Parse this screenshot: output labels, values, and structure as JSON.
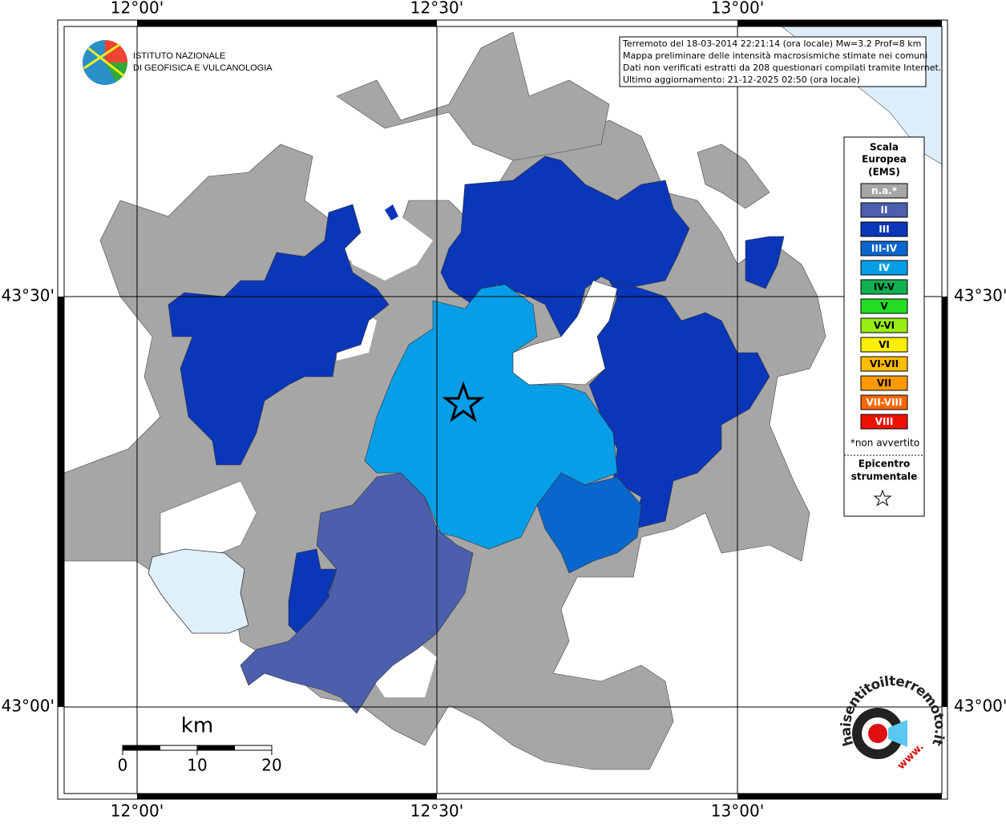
{
  "map": {
    "axis_labels": {
      "top": [
        "12°00'",
        "12°30'",
        "13°00'"
      ],
      "bottom": [
        "12°00'",
        "12°30'",
        "13°00'"
      ],
      "left": [
        "43°30'",
        "43°00'"
      ],
      "right": [
        "43°30'",
        "43°00'"
      ]
    },
    "logo": {
      "line1": "ISTITUTO NAZIONALE",
      "line2": "DI GEOFISICA E VULCANOLOGIA"
    },
    "info": [
      "Terremoto del 18-03-2014 22:21:14 (ora locale) Mw=3.2 Prof=8 km",
      "Mappa preliminare delle intensità macrosismiche stimate nei comuni",
      "Dati non verificati estratti da 208 questionari compilati tramite Internet.",
      "Ultimo aggiornamento: 21-12-2025 02:50 (ora locale)"
    ],
    "legend": {
      "title": [
        "Scala",
        "Europea",
        "(EMS)"
      ],
      "items": [
        {
          "label": "n.a.*",
          "color": "#a6a6a6"
        },
        {
          "label": "II",
          "color": "#4b5fad"
        },
        {
          "label": "III",
          "color": "#0a36b8"
        },
        {
          "label": "III-IV",
          "color": "#0a66cc"
        },
        {
          "label": "IV",
          "color": "#069ee6"
        },
        {
          "label": "IV-V",
          "color": "#10b050"
        },
        {
          "label": "V",
          "color": "#22dd22"
        },
        {
          "label": "V-VI",
          "color": "#99ee11"
        },
        {
          "label": "VI",
          "color": "#ffee00"
        },
        {
          "label": "VI-VII",
          "color": "#ffbb00"
        },
        {
          "label": "VII",
          "color": "#ff9900"
        },
        {
          "label": "VII-VIII",
          "color": "#ff6600"
        },
        {
          "label": "VIII",
          "color": "#ee1100"
        }
      ],
      "note": "*non avvertito",
      "epicenter": [
        "Epicentro",
        "strumentale"
      ]
    },
    "scale": {
      "unit": "km",
      "ticks": [
        "0",
        "10",
        "20"
      ]
    },
    "site_logo": {
      "text": "haisentitoilterremoto.it",
      "www": "www."
    }
  }
}
